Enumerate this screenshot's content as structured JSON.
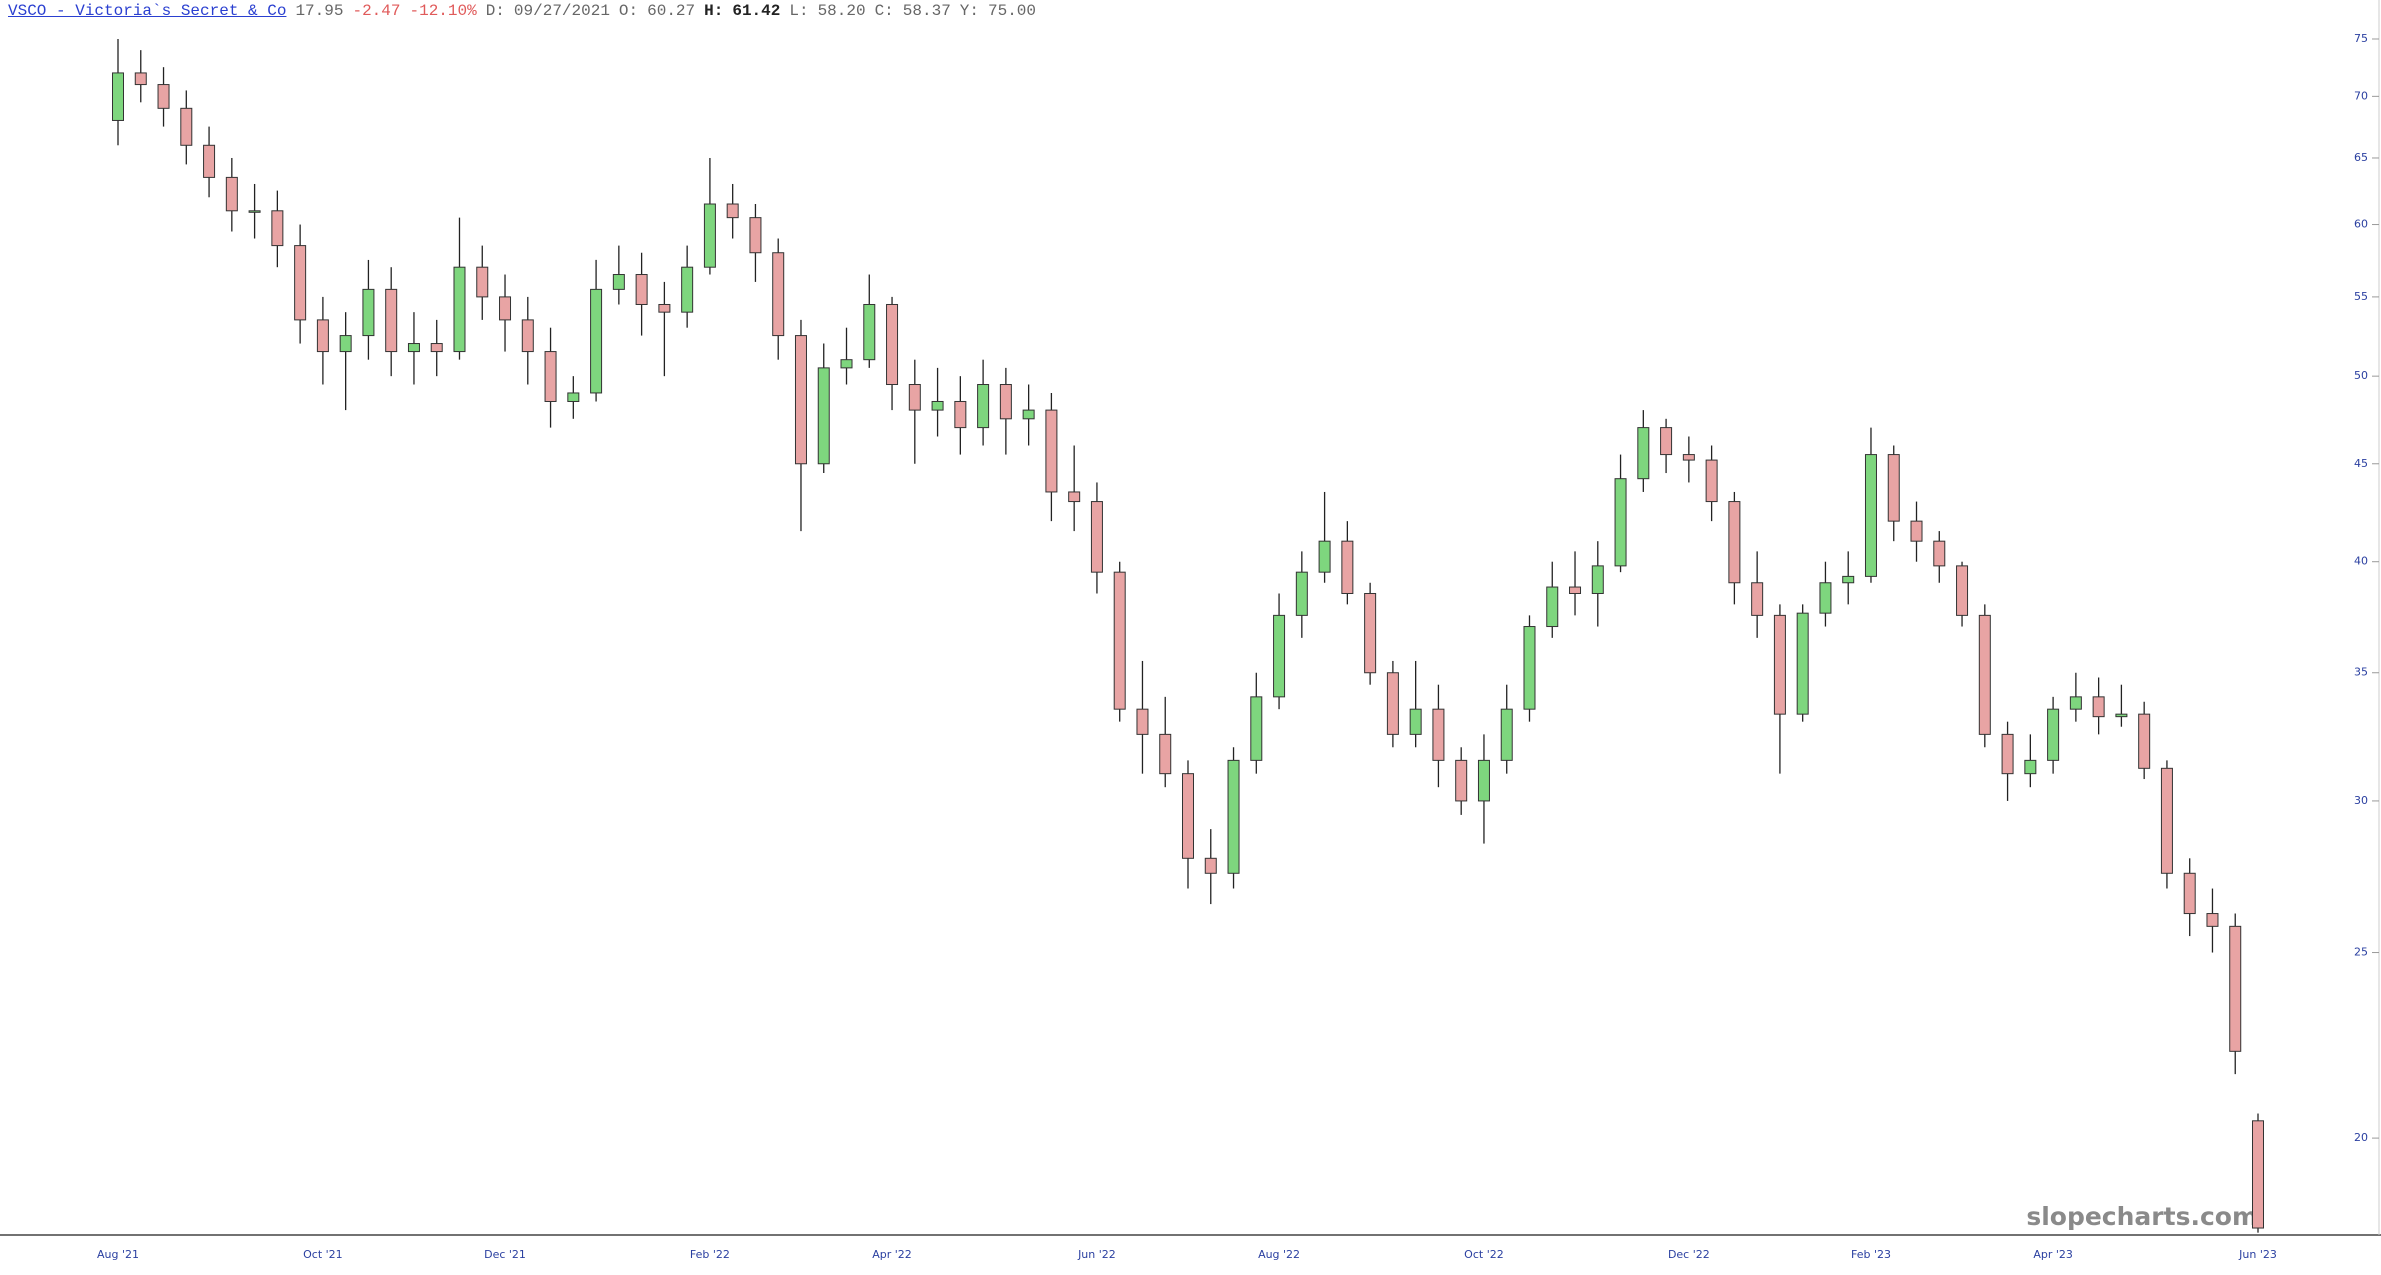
{
  "header": {
    "symbol": "VSCO - Victoria`s Secret & Co",
    "last": "17.95",
    "change": "-2.47",
    "change_pct": "-12.10%",
    "date_label": "D:",
    "date": "09/27/2021",
    "open_label": "O:",
    "open": "60.27",
    "high_label": "H:",
    "high": "61.42",
    "low_label": "L:",
    "low": "58.20",
    "close_label": "C:",
    "close": "58.37",
    "y_label": "Y:",
    "y_value": "75.00"
  },
  "watermark": "slopecharts.com",
  "chart_data": {
    "type": "candlestick",
    "log_scale": true,
    "up_color": "#7ed67e",
    "down_color": "#e8a4a4",
    "ylim": [
      17.8,
      78.6
    ],
    "yticks": [
      20,
      25,
      30,
      35,
      40,
      45,
      50,
      55,
      60,
      65,
      70,
      75
    ],
    "categories": [
      "Aug '21",
      null,
      null,
      null,
      null,
      null,
      null,
      null,
      null,
      "Oct '21",
      null,
      null,
      null,
      null,
      null,
      null,
      null,
      "Dec '21",
      null,
      null,
      null,
      null,
      null,
      null,
      null,
      null,
      "Feb '22",
      null,
      null,
      null,
      null,
      null,
      null,
      null,
      "Apr '22",
      null,
      null,
      null,
      null,
      null,
      null,
      null,
      null,
      "Jun '22",
      null,
      null,
      null,
      null,
      null,
      null,
      null,
      "Aug '22",
      null,
      null,
      null,
      null,
      null,
      null,
      null,
      null,
      "Oct '22",
      null,
      null,
      null,
      null,
      null,
      null,
      null,
      null,
      "Dec '22",
      null,
      null,
      null,
      null,
      null,
      null,
      null,
      "Feb '23",
      null,
      null,
      null,
      null,
      null,
      null,
      null,
      "Apr '23",
      null,
      null,
      null,
      null,
      null,
      null,
      null,
      null,
      "Jun '23"
    ],
    "open": [
      68,
      72,
      71,
      69,
      66,
      63.5,
      61,
      61,
      58.5,
      53.5,
      51.5,
      52.5,
      55.5,
      51.5,
      52,
      51.5,
      57,
      55,
      53.5,
      51.5,
      48.5,
      49,
      55.5,
      56.5,
      54.5,
      54,
      57,
      61.5,
      60.5,
      58,
      52.5,
      45,
      50.5,
      51,
      54.5,
      49.5,
      48,
      48.5,
      47,
      49.5,
      47.5,
      48,
      43.5,
      43,
      39.5,
      33.5,
      32.5,
      31,
      28,
      27.5,
      31.5,
      34,
      37.5,
      39.5,
      41,
      38.5,
      35,
      32.5,
      33.5,
      31.5,
      30,
      31.5,
      33.5,
      37,
      38.8,
      38.5,
      39.8,
      44.2,
      47,
      45.5,
      45.2,
      43,
      39,
      37.5,
      33.3,
      37.6,
      39,
      39.3,
      45.5,
      42,
      41,
      39.8,
      37.5,
      32.5,
      31,
      31.5,
      33.5,
      34,
      33.2,
      33.3,
      31.2,
      27.5,
      26.2,
      25.8,
      20.42
    ],
    "high": [
      75,
      74,
      72.5,
      70.5,
      67.5,
      65,
      63,
      62.5,
      60,
      55,
      54,
      57.5,
      57,
      54,
      53.5,
      60.5,
      58.5,
      56.5,
      55,
      53,
      50,
      57.5,
      58.5,
      58,
      56,
      58.5,
      65,
      63,
      61.5,
      59,
      53.5,
      52,
      53,
      56.5,
      55,
      51,
      50.5,
      50,
      51,
      50.5,
      49.5,
      49,
      46,
      44,
      40,
      35.5,
      34,
      31.5,
      29,
      32,
      35,
      38.5,
      40.5,
      43.5,
      42,
      39,
      35.5,
      35.5,
      34.5,
      32,
      32.5,
      34.5,
      37.5,
      40,
      40.5,
      41,
      45.5,
      48,
      47.5,
      46.5,
      46,
      43.5,
      40.5,
      38,
      38,
      40,
      40.5,
      47,
      46,
      43,
      41.5,
      40,
      38,
      33,
      32.5,
      34,
      35,
      34.8,
      34.5,
      33.8,
      31.5,
      28,
      27,
      26.2,
      20.6
    ],
    "low": [
      66,
      69.5,
      67.5,
      64.5,
      62,
      59.5,
      59,
      57,
      52,
      49.5,
      48,
      51,
      50,
      49.5,
      50,
      51,
      53.5,
      51.5,
      49.5,
      47,
      47.5,
      48.5,
      54.5,
      52.5,
      50,
      53,
      56.5,
      59,
      56,
      51,
      41.5,
      44.5,
      49.5,
      50.5,
      48,
      45,
      46.5,
      45.5,
      46,
      45.5,
      46,
      42,
      41.5,
      38.5,
      33,
      31,
      30.5,
      27,
      26.5,
      27,
      31,
      33.5,
      36.5,
      39,
      38,
      34.5,
      32,
      32,
      30.5,
      29.5,
      28.5,
      31,
      33,
      36.5,
      37.5,
      37,
      39.5,
      43.5,
      44.5,
      44,
      42,
      38,
      36.5,
      31,
      33,
      37,
      38,
      39,
      41,
      40,
      39,
      37,
      32,
      30,
      30.5,
      31,
      33,
      32.5,
      32.8,
      30.8,
      27,
      25.5,
      25,
      21.6,
      17.85
    ],
    "close": [
      72,
      71,
      69,
      66,
      63.5,
      61,
      61,
      58.5,
      53.5,
      51.5,
      52.5,
      55.5,
      51.5,
      52,
      51.5,
      57,
      55,
      53.5,
      51.5,
      48.5,
      49,
      55.5,
      56.5,
      54.5,
      54,
      57,
      61.5,
      60.5,
      58,
      52.5,
      45,
      50.5,
      51,
      54.5,
      49.5,
      48,
      48.5,
      47,
      49.5,
      47.5,
      48,
      43.5,
      43,
      39.5,
      33.5,
      32.5,
      31,
      28,
      27.5,
      31.5,
      34,
      37.5,
      39.5,
      41,
      38.5,
      35,
      32.5,
      33.5,
      31.5,
      30,
      31.5,
      33.5,
      37,
      38.8,
      38.5,
      39.8,
      44.2,
      47,
      45.5,
      45.2,
      43,
      39,
      37.5,
      33.3,
      37.6,
      39,
      39.3,
      45.5,
      42,
      41,
      39.8,
      37.5,
      32.5,
      31,
      31.5,
      33.5,
      34,
      33.2,
      33.3,
      31.2,
      27.5,
      26.2,
      25.8,
      22.2,
      17.95
    ]
  }
}
